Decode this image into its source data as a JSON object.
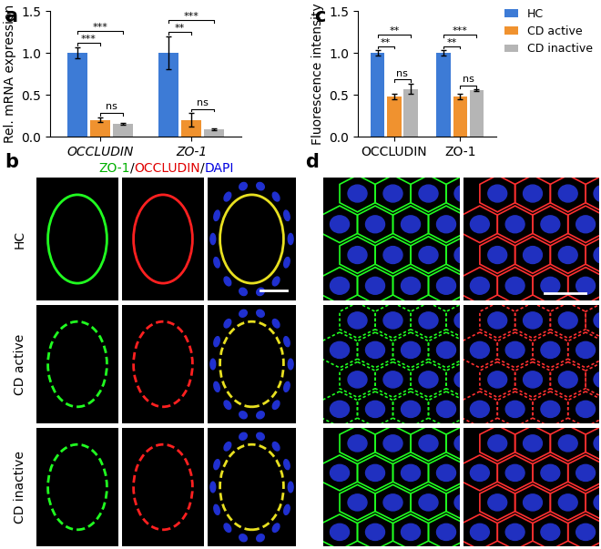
{
  "chart_data": [
    {
      "type": "bar",
      "label": "a",
      "y_label": "Rel. mRNA expression",
      "categories": [
        "OCCLUDIN",
        "ZO-1"
      ],
      "series": [
        {
          "name": "HC",
          "color": "#3d7bd6",
          "values": [
            1.0,
            1.0
          ],
          "errors": [
            0.07,
            0.2
          ]
        },
        {
          "name": "CD active",
          "color": "#f0922f",
          "values": [
            0.2,
            0.2
          ],
          "errors": [
            0.03,
            0.08
          ]
        },
        {
          "name": "CD inactive",
          "color": "#b5b5b5",
          "values": [
            0.15,
            0.09
          ],
          "errors": [
            0.01,
            0.01
          ]
        }
      ],
      "ylim": [
        0,
        1.5
      ],
      "yticks": [
        {
          "value": 0,
          "label": "0.0"
        },
        {
          "value": 0.5,
          "label": "0.5"
        },
        {
          "value": 1.0,
          "label": "1.0"
        },
        {
          "value": 1.5,
          "label": "1.5"
        }
      ],
      "significance": [
        {
          "category": "OCCLUDIN",
          "between": [
            "HC",
            "CD active"
          ],
          "text": "***"
        },
        {
          "category": "OCCLUDIN",
          "between": [
            "HC",
            "CD inactive"
          ],
          "text": "***"
        },
        {
          "category": "OCCLUDIN",
          "between": [
            "CD active",
            "CD inactive"
          ],
          "text": "ns"
        },
        {
          "category": "ZO-1",
          "between": [
            "HC",
            "CD active"
          ],
          "text": "**"
        },
        {
          "category": "ZO-1",
          "between": [
            "HC",
            "CD inactive"
          ],
          "text": "***"
        },
        {
          "category": "ZO-1",
          "between": [
            "CD active",
            "CD inactive"
          ],
          "text": "ns"
        }
      ]
    },
    {
      "type": "bar",
      "label": "c",
      "y_label": "Fluorescence intensity",
      "categories": [
        "OCCLUDIN",
        "ZO-1"
      ],
      "series": [
        {
          "name": "HC",
          "color": "#3d7bd6",
          "values": [
            1.0,
            1.0
          ],
          "errors": [
            0.03,
            0.03
          ]
        },
        {
          "name": "CD active",
          "color": "#f0922f",
          "values": [
            0.48,
            0.48
          ],
          "errors": [
            0.03,
            0.03
          ]
        },
        {
          "name": "CD inactive",
          "color": "#b5b5b5",
          "values": [
            0.57,
            0.55
          ],
          "errors": [
            0.06,
            0.01
          ]
        }
      ],
      "ylim": [
        0,
        1.5
      ],
      "yticks": [
        {
          "value": 0,
          "label": "0.0"
        },
        {
          "value": 0.5,
          "label": "0.5"
        },
        {
          "value": 1.0,
          "label": "1.0"
        },
        {
          "value": 1.5,
          "label": "1.5"
        }
      ],
      "legend": "upper right",
      "significance": [
        {
          "category": "OCCLUDIN",
          "between": [
            "HC",
            "CD active"
          ],
          "text": "**"
        },
        {
          "category": "OCCLUDIN",
          "between": [
            "HC",
            "CD inactive"
          ],
          "text": "**"
        },
        {
          "category": "OCCLUDIN",
          "between": [
            "CD active",
            "CD inactive"
          ],
          "text": "ns"
        },
        {
          "category": "ZO-1",
          "between": [
            "HC",
            "CD active"
          ],
          "text": "**"
        },
        {
          "category": "ZO-1",
          "between": [
            "HC",
            "CD inactive"
          ],
          "text": "***"
        },
        {
          "category": "ZO-1",
          "between": [
            "CD active",
            "CD inactive"
          ],
          "text": "ns"
        }
      ]
    }
  ],
  "images": [
    {
      "label": "b",
      "title_parts": [
        {
          "text": "ZO-1",
          "color": "#00b000"
        },
        {
          "text": "/",
          "color": "#000000"
        },
        {
          "text": "OCCLUDIN",
          "color": "#e00000"
        },
        {
          "text": "/",
          "color": "#000000"
        },
        {
          "text": "DAPI",
          "color": "#0000e0"
        }
      ],
      "rows": [
        "HC",
        "CD active",
        "CD inactive"
      ]
    },
    {
      "label": "d"
    }
  ]
}
